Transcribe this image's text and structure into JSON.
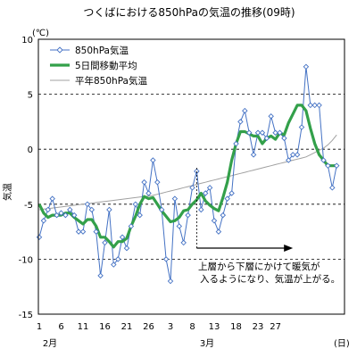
{
  "chart_data": {
    "type": "line",
    "title": "つくばにおける850hPaの気温の推移(09時)",
    "ylabel": "気温",
    "yunit": "(℃)",
    "xunit": "(日)",
    "ylim": [
      -15,
      10
    ],
    "yticks": [
      10,
      5,
      0,
      -5,
      -10,
      -15
    ],
    "x_tick_labels": [
      "1",
      "6",
      "11",
      "16",
      "21",
      "26",
      "3",
      "8",
      "13",
      "18",
      "23",
      "27"
    ],
    "months": [
      "2月",
      "3月"
    ],
    "grid": "horizontal-dashed",
    "legend_position": "top-left",
    "annotation": {
      "line1": "上層から下層にかけて暖気が",
      "line2": "入るようになり、気温が上がる。",
      "from_day_index": 36,
      "to_day_index": 58
    },
    "series": [
      {
        "name": "850hPa気温",
        "color": "#4472c4",
        "marker": "diamond-open",
        "values": [
          -8,
          -6.5,
          -5.5,
          -4.5,
          -6,
          -5.8,
          -6,
          -5.5,
          -6,
          -7.5,
          -7.5,
          -5,
          -5.5,
          -7.5,
          -11.5,
          -8.5,
          -5.5,
          -10.5,
          -10,
          -8,
          -9,
          -7,
          -5,
          -6,
          -3,
          -4,
          -1,
          -3,
          -5.5,
          -10,
          -12,
          -4.5,
          -7,
          -8.5,
          -6,
          -3.5,
          -2,
          -5.5,
          -4,
          -3.5,
          -6.5,
          -7.5,
          -6,
          -4.5,
          -4,
          0.5,
          2.5,
          3.5,
          1.5,
          -0.5,
          1.5,
          1.5,
          1,
          3,
          1.5,
          1.5,
          1,
          -1,
          -0.5,
          -0.5,
          2,
          7.5,
          4,
          4,
          4,
          -1,
          -1.5,
          -3.5,
          -1.5
        ]
      },
      {
        "name": "5日間移動平均",
        "color": "#33a04a",
        "values": [
          -5,
          -5.8,
          -6.2,
          -6,
          -6,
          -6,
          -5.8,
          -5.8,
          -6.2,
          -6.5,
          -6.8,
          -6.4,
          -6.4,
          -7,
          -8,
          -8,
          -8.4,
          -8.9,
          -8.4,
          -8.4,
          -8.1,
          -7,
          -6.1,
          -5,
          -4.3,
          -4.5,
          -4.4,
          -5,
          -5.6,
          -6.1,
          -6.6,
          -6.5,
          -6.2,
          -5.6,
          -5.5,
          -5,
          -4.6,
          -4,
          -4.7,
          -5.1,
          -5.4,
          -5.6,
          -4.4,
          -3,
          -1,
          0.5,
          1.6,
          1.6,
          1.4,
          1.2,
          1.2,
          0.5,
          1,
          1.2,
          0.9,
          1.5,
          1.3,
          2.4,
          3.2,
          4,
          4,
          3.5,
          1.9,
          0.5,
          -0.5,
          -1,
          -1.5,
          -1.5,
          -1.5
        ]
      },
      {
        "name": "平年850hPa気温",
        "color": "#a0a0a0",
        "values": [
          -5.5,
          -5.45,
          -5.4,
          -5.35,
          -5.3,
          -5.25,
          -5.2,
          -5.15,
          -5.1,
          -5.05,
          -5,
          -4.95,
          -4.9,
          -4.85,
          -4.8,
          -4.75,
          -4.7,
          -4.65,
          -4.6,
          -4.55,
          -4.5,
          -4.45,
          -4.4,
          -4.35,
          -4.3,
          -4.25,
          -4.2,
          -4.1,
          -4,
          -3.9,
          -3.8,
          -3.7,
          -3.6,
          -3.5,
          -3.4,
          -3.3,
          -3.2,
          -3.1,
          -3,
          -2.9,
          -2.8,
          -2.7,
          -2.6,
          -2.5,
          -2.4,
          -2.3,
          -2.2,
          -2.1,
          -2,
          -1.9,
          -1.8,
          -1.7,
          -1.6,
          -1.5,
          -1.4,
          -1.3,
          -1.2,
          -1.1,
          -1,
          -0.9,
          -0.8,
          -0.7,
          -0.5,
          -0.3,
          -0.1,
          0.1,
          0.4,
          0.8,
          1.3
        ]
      }
    ]
  }
}
